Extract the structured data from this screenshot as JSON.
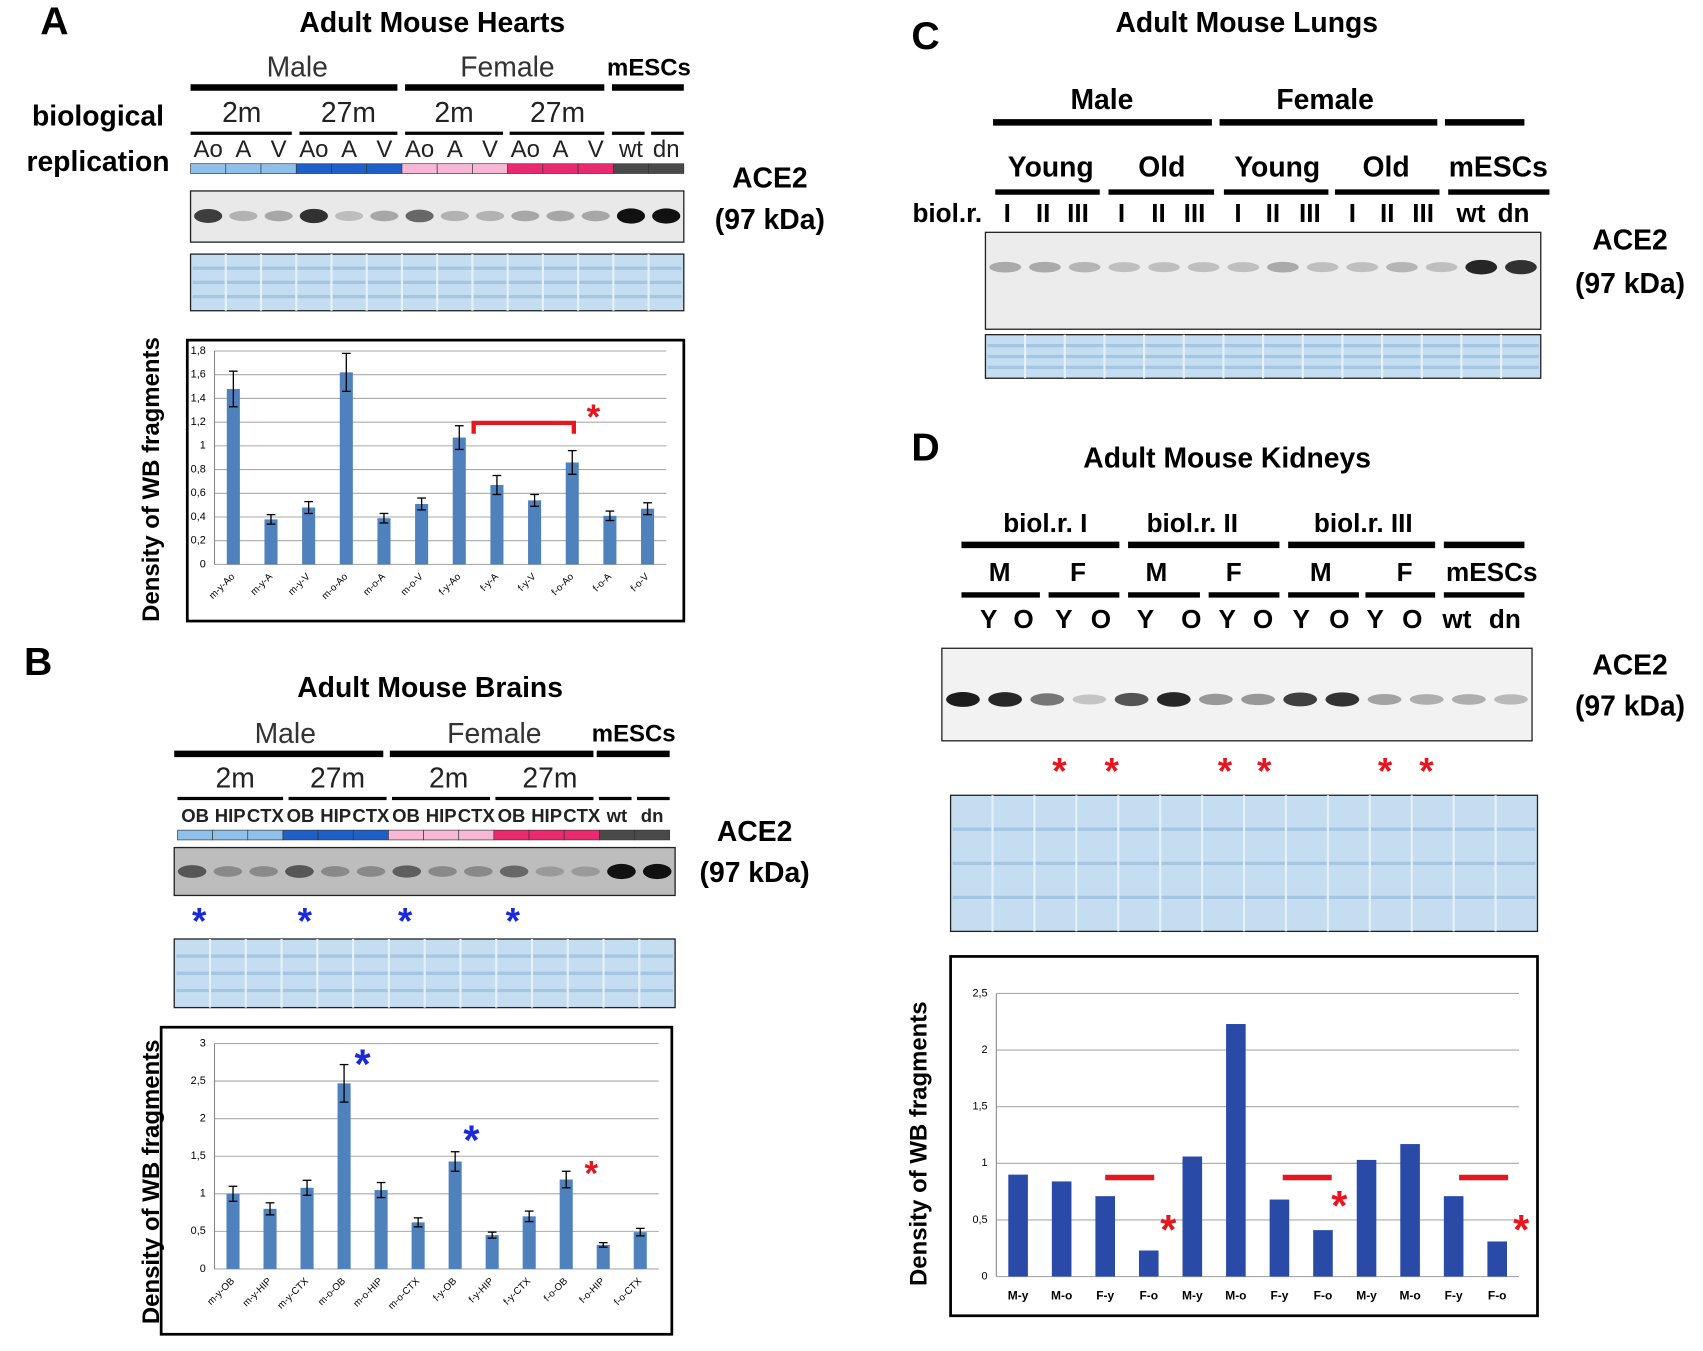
{
  "panels": {
    "A": {
      "label": "A",
      "title": "Adult Mouse Hearts",
      "groups": [
        "Male",
        "Female",
        "mESCs"
      ],
      "ages": [
        "2m",
        "27m",
        "2m",
        "27m"
      ],
      "lanes": [
        "Ao",
        "A",
        "V",
        "Ao",
        "A",
        "V",
        "Ao",
        "A",
        "V",
        "Ao",
        "A",
        "V",
        "wt",
        "dn"
      ],
      "side": [
        "biological",
        "replication"
      ],
      "protein": "ACE2",
      "size": "(97 kDa)"
    },
    "B": {
      "label": "B",
      "title": "Adult Mouse Brains",
      "groups": [
        "Male",
        "Female",
        "mESCs"
      ],
      "ages": [
        "2m",
        "27m",
        "2m",
        "27m"
      ],
      "lanes": [
        "OB",
        "HIP",
        "CTX",
        "OB",
        "HIP",
        "CTX",
        "OB",
        "HIP",
        "CTX",
        "OB",
        "HIP",
        "CTX",
        "wt",
        "dn"
      ],
      "stars": [
        "*",
        "*",
        "*",
        "*"
      ],
      "star_color": "#1a2ad8",
      "protein": "ACE2",
      "size": "(97 kDa)"
    },
    "C": {
      "label": "C",
      "title": "Adult Mouse Lungs",
      "groups": [
        "Male",
        "Female"
      ],
      "subgroups": [
        "Young",
        "Old",
        "Young",
        "Old",
        "mESCs"
      ],
      "row_label": "biol.r.",
      "lanes": [
        "I",
        "II",
        "III",
        "I",
        "II",
        "III",
        "I",
        "II",
        "III",
        "I",
        "II",
        "III",
        "wt",
        "dn"
      ],
      "protein": "ACE2",
      "size": "(97 kDa)"
    },
    "D": {
      "label": "D",
      "title": "Adult Mouse Kidneys",
      "groups": [
        "biol.r. I",
        "biol.r. II",
        "biol.r. III"
      ],
      "sexes": [
        "M",
        "F",
        "M",
        "F",
        "M",
        "F",
        "mESCs"
      ],
      "lanes": [
        "Y",
        "O",
        "Y",
        "O",
        "Y",
        "O",
        "Y",
        "O",
        "Y",
        "O",
        "Y",
        "O",
        "wt",
        "dn"
      ],
      "stars": [
        "*",
        "*",
        "*",
        "*",
        "*",
        "*"
      ],
      "star_color": "#e8141e",
      "protein": "ACE2",
      "size": "(97 kDa)"
    }
  },
  "chart_data": [
    {
      "type": "bar",
      "y_label": "Density of WB fragments",
      "color": "#4f81bd",
      "grid": true,
      "categories": [
        "m-y-Ao",
        "m-y-A",
        "m-y-V",
        "m-o-Ao",
        "m-o-A",
        "m-o-V",
        "f-y-Ao",
        "f-y-A",
        "f-y-V",
        "f-o-Ao",
        "f-o-A",
        "f-o-V"
      ],
      "values": [
        1.48,
        0.38,
        0.48,
        1.62,
        0.39,
        0.51,
        1.07,
        0.67,
        0.54,
        0.86,
        0.41,
        0.47
      ],
      "errors": [
        0.15,
        0.04,
        0.05,
        0.16,
        0.04,
        0.05,
        0.1,
        0.08,
        0.05,
        0.1,
        0.04,
        0.05
      ],
      "ylim": [
        0,
        1.8
      ],
      "yticks": [
        0,
        {
          "value": 0.2,
          "label": "0,2"
        },
        {
          "value": 0.4,
          "label": "0,4"
        },
        {
          "value": 0.6,
          "label": "0,6"
        },
        {
          "value": 0.8,
          "label": "0,8"
        },
        1,
        {
          "value": 1.2,
          "label": "1,2"
        },
        {
          "value": 1.4,
          "label": "1,4"
        },
        {
          "value": 1.6,
          "label": "1,6"
        },
        {
          "value": 1.8,
          "label": "1,8"
        }
      ],
      "annotations": [
        {
          "text": "*",
          "color": "#e8141e"
        }
      ]
    },
    {
      "type": "bar",
      "y_label": "Density of WB fragments",
      "color": "#4f81bd",
      "grid": true,
      "categories": [
        "m-y-OB",
        "m-y-HIP",
        "m-y-CTX",
        "m-o-OB",
        "m-o-HIP",
        "m-o-CTX",
        "f-y-OB",
        "f-y-HIP",
        "f-y-CTX",
        "f-o-OB",
        "f-o-HIP",
        "f-o-CTX"
      ],
      "values": [
        1.0,
        0.8,
        1.08,
        2.47,
        1.05,
        0.62,
        1.43,
        0.45,
        0.7,
        1.19,
        0.32,
        0.49
      ],
      "errors": [
        0.1,
        0.08,
        0.1,
        0.25,
        0.1,
        0.06,
        0.13,
        0.04,
        0.07,
        0.11,
        0.03,
        0.05
      ],
      "ylim": [
        0,
        3
      ],
      "yticks": [
        0,
        {
          "value": 0.5,
          "label": "0,5"
        },
        1,
        {
          "value": 1.5,
          "label": "1,5"
        },
        2,
        {
          "value": 2.5,
          "label": "2,5"
        },
        3
      ],
      "annotations": [
        {
          "text": "*",
          "color": "#1a2ad8"
        },
        {
          "text": "*",
          "color": "#1a2ad8"
        },
        {
          "text": "*",
          "color": "#e8141e"
        }
      ]
    },
    {
      "type": "bar",
      "y_label": "Density of WB fragments",
      "color": "#2a4aa8",
      "grid": true,
      "categories": [
        "M-y",
        "M-o",
        "F-y",
        "F-o",
        "M-y",
        "M-o",
        "F-y",
        "F-o",
        "M-y",
        "M-o",
        "F-y",
        "F-o"
      ],
      "values": [
        0.9,
        0.84,
        0.71,
        0.23,
        1.06,
        2.23,
        0.68,
        0.41,
        1.03,
        1.17,
        0.71,
        0.31
      ],
      "ylim": [
        0,
        2.5
      ],
      "yticks": [
        0,
        {
          "value": 0.5,
          "label": "0,5"
        },
        1,
        {
          "value": 1.5,
          "label": "1,5"
        },
        2,
        {
          "value": 2.5,
          "label": "2,5"
        }
      ],
      "annotations": [
        {
          "text": "*",
          "color": "#e8141e"
        },
        {
          "text": "*",
          "color": "#e8141e"
        },
        {
          "text": "*",
          "color": "#e8141e"
        }
      ]
    }
  ]
}
